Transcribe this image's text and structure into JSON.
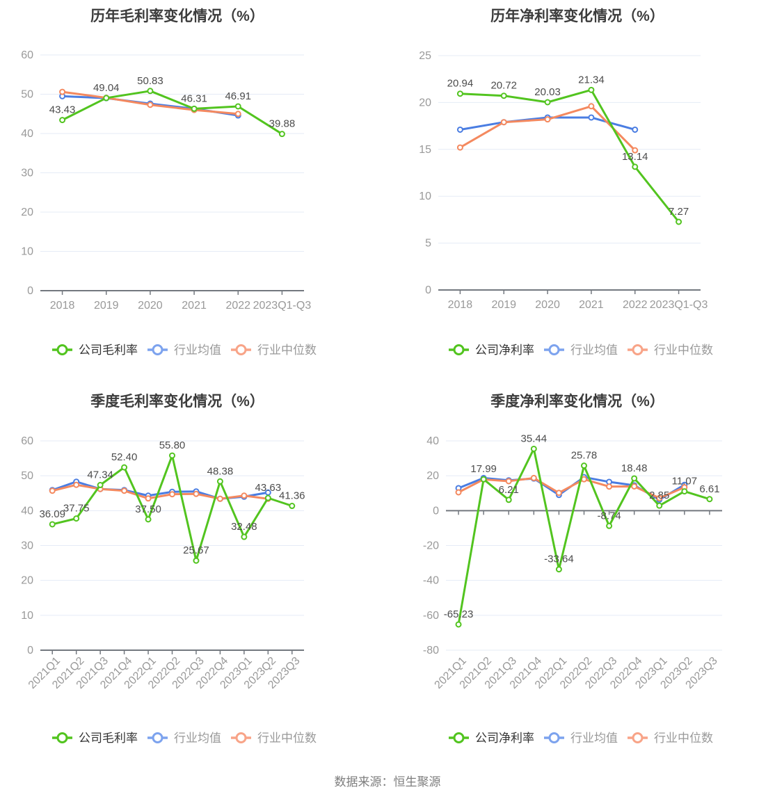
{
  "footer": {
    "text": "数据来源：恒生聚源"
  },
  "colors": {
    "company": "#52c41f",
    "industry_mean": "#4a7de2",
    "industry_median": "#f4895f",
    "legend_mean_marker": "#7da3ee",
    "legend_median_marker": "#f8a488",
    "grid": "#e5ebf6",
    "axis": "#73787f",
    "tick_text": "#999999",
    "title_text": "#3c3c3c",
    "data_label_text": "#4c4c4c",
    "legend_active_text": "#333333",
    "legend_muted_text": "#999999",
    "source_text": "#7e7e7e"
  },
  "chart_data": [
    {
      "type": "line",
      "title": "历年毛利率变化情况（%）",
      "categories": [
        "2018",
        "2019",
        "2020",
        "2021",
        "2022",
        "2023Q1-Q3"
      ],
      "yticks": [
        "60",
        "50",
        "40",
        "30",
        "20",
        "10",
        "0"
      ],
      "ylim": [
        0,
        60
      ],
      "legend_position": "bottom",
      "grid": true,
      "series": [
        {
          "name": "公司毛利率",
          "role": "company",
          "values": [
            43.43,
            49.04,
            50.83,
            46.31,
            46.91,
            39.88
          ],
          "labels": [
            "43.43",
            "49.04",
            "50.83",
            "46.31",
            "46.91",
            "39.88"
          ]
        },
        {
          "name": "行业均值",
          "role": "industry_mean",
          "values": [
            49.5,
            49.0,
            47.6,
            46.3,
            44.6,
            null
          ]
        },
        {
          "name": "行业中位数",
          "role": "industry_median",
          "values": [
            50.6,
            49.1,
            47.3,
            46.0,
            45.0,
            null
          ]
        }
      ]
    },
    {
      "type": "line",
      "title": "历年净利率变化情况（%）",
      "categories": [
        "2018",
        "2019",
        "2020",
        "2021",
        "2022",
        "2023Q1-Q3"
      ],
      "yticks": [
        "25",
        "20",
        "15",
        "10",
        "5",
        "0"
      ],
      "ylim": [
        0,
        25
      ],
      "legend_position": "bottom",
      "grid": true,
      "series": [
        {
          "name": "公司净利率",
          "role": "company",
          "values": [
            20.94,
            20.72,
            20.03,
            21.34,
            13.14,
            7.27
          ],
          "labels": [
            "20.94",
            "20.72",
            "20.03",
            "21.34",
            "13.14",
            "7.27"
          ]
        },
        {
          "name": "行业均值",
          "role": "industry_mean",
          "values": [
            17.1,
            17.9,
            18.4,
            18.4,
            17.1,
            null
          ]
        },
        {
          "name": "行业中位数",
          "role": "industry_median",
          "values": [
            15.2,
            17.9,
            18.2,
            19.6,
            14.9,
            null
          ]
        }
      ]
    },
    {
      "type": "line",
      "title": "季度毛利率变化情况（%）",
      "categories": [
        "2021Q1",
        "2021Q2",
        "2021Q3",
        "2021Q4",
        "2022Q1",
        "2022Q2",
        "2022Q3",
        "2022Q4",
        "2023Q1",
        "2023Q2",
        "2023Q3"
      ],
      "yticks": [
        "60",
        "50",
        "40",
        "30",
        "20",
        "10",
        "0"
      ],
      "ylim": [
        0,
        60
      ],
      "legend_position": "bottom",
      "grid": true,
      "series": [
        {
          "name": "公司毛利率",
          "role": "company",
          "values": [
            36.09,
            37.75,
            47.34,
            52.4,
            37.5,
            55.8,
            25.67,
            48.38,
            32.48,
            43.63,
            41.36
          ],
          "labels": [
            "36.09",
            "37.75",
            "47.34",
            "52.40",
            "37.50",
            "55.80",
            "25.67",
            "48.38",
            "32.48",
            "43.63",
            "41.36"
          ]
        },
        {
          "name": "行业均值",
          "role": "industry_mean",
          "values": [
            45.9,
            48.3,
            46.2,
            45.9,
            44.3,
            45.4,
            45.5,
            43.4,
            44.0,
            45.2,
            null
          ]
        },
        {
          "name": "行业中位数",
          "role": "industry_median",
          "values": [
            45.7,
            47.4,
            46.2,
            45.7,
            43.5,
            44.7,
            44.8,
            43.4,
            44.3,
            43.4,
            null
          ]
        }
      ]
    },
    {
      "type": "line",
      "title": "季度净利率变化情况（%）",
      "categories": [
        "2021Q1",
        "2021Q2",
        "2021Q3",
        "2021Q4",
        "2022Q1",
        "2022Q2",
        "2022Q3",
        "2022Q4",
        "2023Q1",
        "2023Q2",
        "2023Q3"
      ],
      "yticks": [
        "40",
        "20",
        "0",
        "-20",
        "-40",
        "-60",
        "-80"
      ],
      "ylim": [
        -80,
        40
      ],
      "legend_position": "bottom",
      "grid": true,
      "series": [
        {
          "name": "公司净利率",
          "role": "company",
          "values": [
            -65.23,
            17.99,
            6.21,
            35.44,
            -33.64,
            25.78,
            -8.74,
            18.48,
            2.85,
            11.07,
            6.61
          ],
          "labels": [
            "-65.23",
            "17.99",
            "6.21",
            "35.44",
            "-33.64",
            "25.78",
            "-8.74",
            "18.48",
            "2.85",
            "11.07",
            "6.61"
          ]
        },
        {
          "name": "行业均值",
          "role": "industry_mean",
          "values": [
            12.9,
            18.7,
            17.4,
            18.4,
            9.0,
            19.2,
            16.5,
            14.5,
            6.3,
            14.8,
            null
          ]
        },
        {
          "name": "行业中位数",
          "role": "industry_median",
          "values": [
            10.5,
            17.9,
            16.9,
            18.7,
            10.2,
            18.0,
            13.8,
            13.9,
            7.2,
            13.4,
            null
          ]
        }
      ]
    }
  ]
}
